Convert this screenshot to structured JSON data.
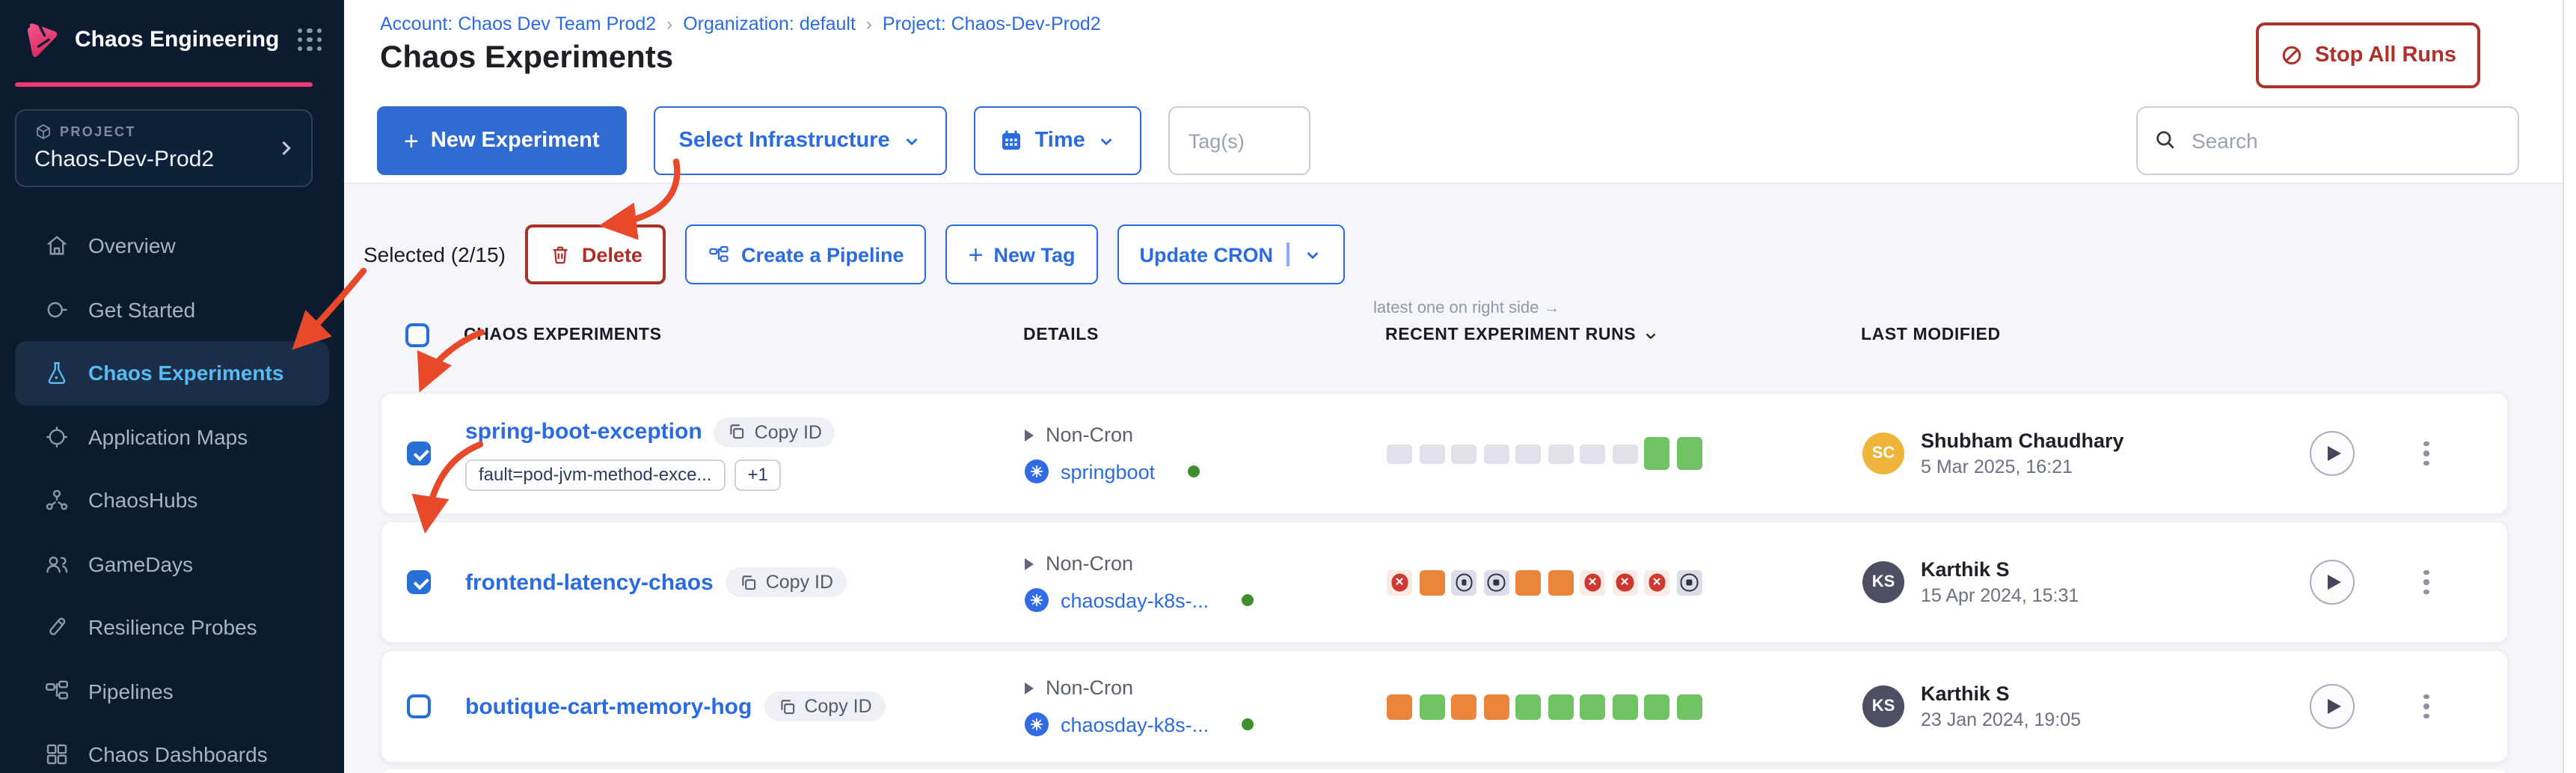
{
  "colors": {
    "primary_blue": "#2b6be2",
    "sidebar_accent_pink": "#ee3a71",
    "danger_red": "#b0302a",
    "run_success_green": "#6fc363",
    "run_running_orange": "#ea863c",
    "run_failed_red": "#ce382e",
    "active_nav_blue": "#56bbf0",
    "annotation_red": "#e8492b"
  },
  "sidebar": {
    "app_title": "Chaos Engineering",
    "project_label": "PROJECT",
    "project_name": "Chaos-Dev-Prod2",
    "items": [
      {
        "label": "Overview"
      },
      {
        "label": "Get Started"
      },
      {
        "label": "Chaos Experiments",
        "active": true
      },
      {
        "label": "Application Maps"
      },
      {
        "label": "ChaosHubs"
      },
      {
        "label": "GameDays"
      },
      {
        "label": "Resilience Probes"
      },
      {
        "label": "Pipelines"
      },
      {
        "label": "Chaos Dashboards"
      }
    ]
  },
  "header": {
    "breadcrumbs": [
      "Account: Chaos Dev Team Prod2",
      "Organization: default",
      "Project: Chaos-Dev-Prod2"
    ],
    "title": "Chaos Experiments",
    "stop_all_runs_label": "Stop All Runs"
  },
  "toolbar": {
    "plus_glyph": "+",
    "new_experiment_label": "New Experiment",
    "select_infrastructure_label": "Select Infrastructure",
    "time_label": "Time",
    "tags_placeholder": "Tag(s)",
    "search_placeholder": "Search"
  },
  "selection": {
    "selected_label": "Selected (2/15)",
    "delete_label": "Delete",
    "create_pipeline_label": "Create a Pipeline",
    "new_tag_label": "New Tag",
    "update_cron_label": "Update CRON"
  },
  "table": {
    "note": "latest one on right side →",
    "columns": {
      "experiments": "CHAOS EXPERIMENTS",
      "details": "DETAILS",
      "runs": "RECENT EXPERIMENT RUNS",
      "modified": "LAST MODIFIED"
    },
    "rows": [
      {
        "name": "spring-boot-exception",
        "copy_id_label": "Copy ID",
        "checked": true,
        "tags": [
          "fault=pod-jvm-method-exce...",
          "+1"
        ],
        "schedule": "Non-Cron",
        "infra": "springboot",
        "runs": [
          "empty",
          "empty",
          "empty",
          "empty",
          "empty",
          "empty",
          "empty",
          "empty",
          "green-tall",
          "green-tall"
        ],
        "modified": {
          "initials": "SC",
          "name": "Shubham Chaudhary",
          "date": "5 Mar 2025, 16:21",
          "avatar_color": "#f0b43c"
        }
      },
      {
        "name": "frontend-latency-chaos",
        "copy_id_label": "Copy ID",
        "checked": true,
        "schedule": "Non-Cron",
        "infra": "chaosday-k8s-...",
        "runs": [
          "failed",
          "orange",
          "stopped",
          "stopped",
          "orange",
          "orange",
          "failed",
          "failed",
          "failed",
          "stopped"
        ],
        "modified": {
          "initials": "KS",
          "name": "Karthik S",
          "date": "15 Apr 2024, 15:31",
          "avatar_color": "#4d4f62"
        }
      },
      {
        "name": "boutique-cart-memory-hog",
        "copy_id_label": "Copy ID",
        "checked": false,
        "schedule": "Non-Cron",
        "infra": "chaosday-k8s-...",
        "runs": [
          "orange",
          "green",
          "orange",
          "orange",
          "green",
          "green",
          "green",
          "green",
          "green",
          "green"
        ],
        "modified": {
          "initials": "KS",
          "name": "Karthik S",
          "date": "23 Jan 2024, 19:05",
          "avatar_color": "#4d4f62"
        }
      }
    ]
  }
}
